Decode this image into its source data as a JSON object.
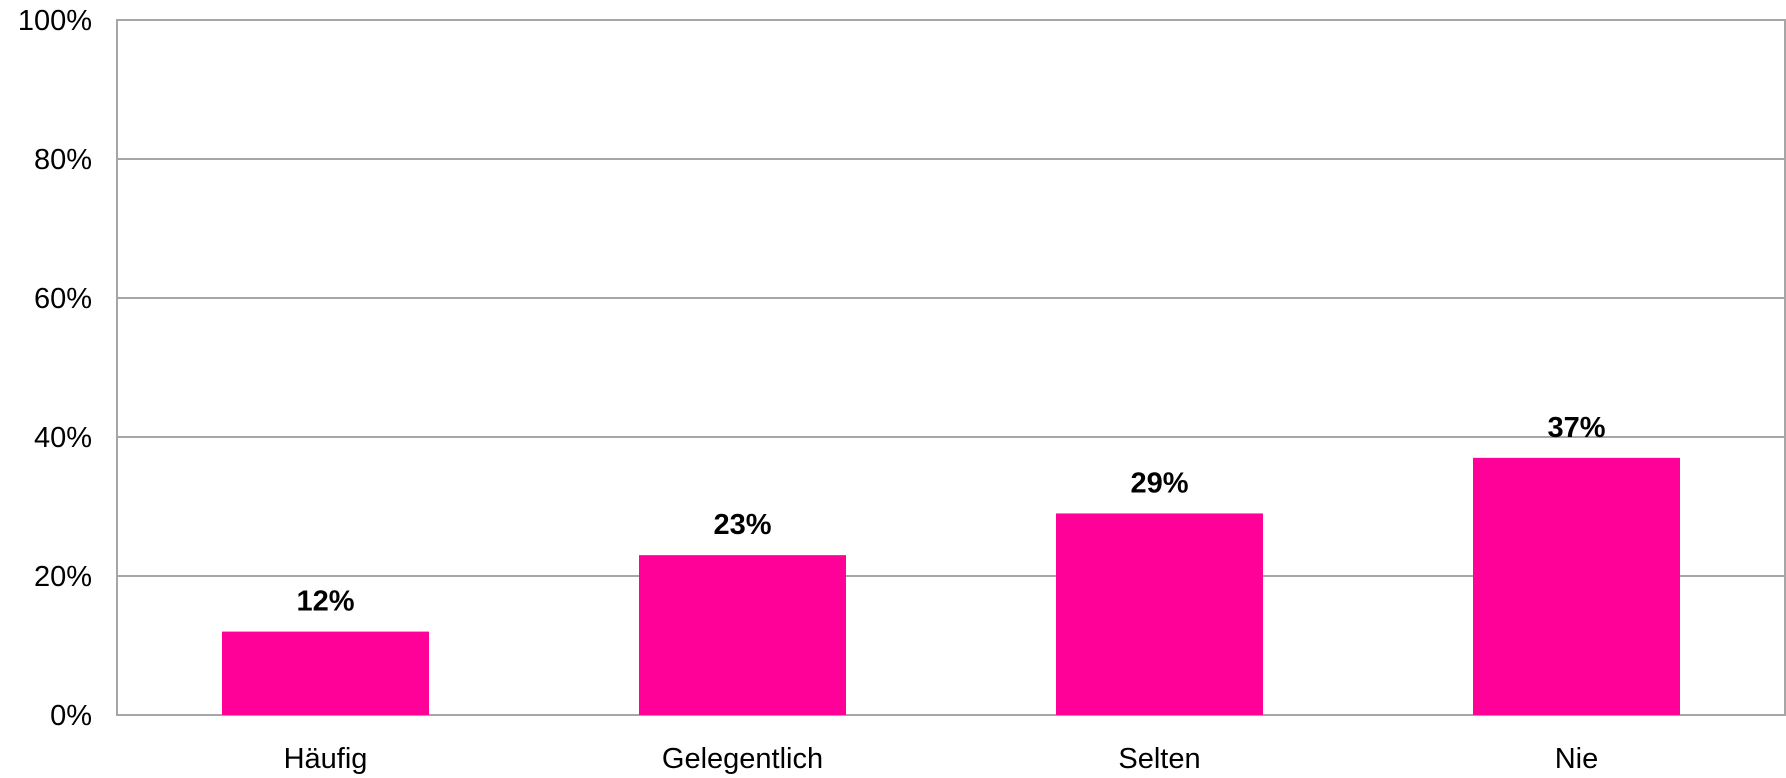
{
  "chart_data": {
    "type": "bar",
    "title": "",
    "xlabel": "",
    "ylabel": "",
    "categories": [
      "Häufig",
      "Gelegentlich",
      "Selten",
      "Nie"
    ],
    "values": [
      12,
      23,
      29,
      37
    ],
    "value_labels": [
      "12%",
      "23%",
      "29%",
      "37%"
    ],
    "ylim": [
      0,
      100
    ],
    "y_ticks": [
      0,
      20,
      40,
      60,
      80,
      100
    ],
    "y_tick_labels": [
      "0%",
      "20%",
      "40%",
      "60%",
      "80%",
      "100%"
    ],
    "grid": true,
    "legend": "none",
    "bar_color": "#FF0099",
    "grid_color": "#A6A6A6",
    "axis_color": "#A6A6A6"
  }
}
